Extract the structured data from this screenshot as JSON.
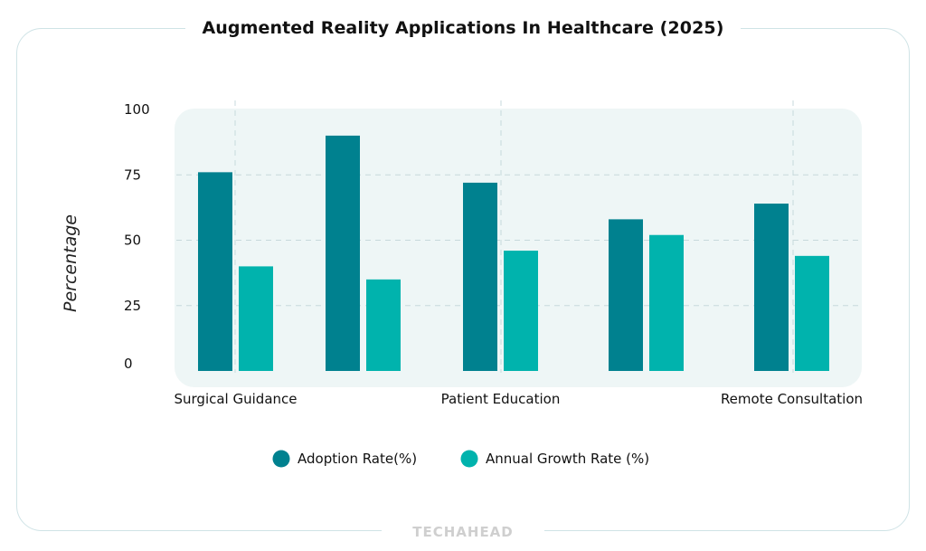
{
  "chart_data": {
    "type": "bar",
    "title": "Augmented Reality Applications In Healthcare (2025)",
    "ylabel": "Percentage",
    "xlabel": "",
    "ylim": [
      0,
      100
    ],
    "yticks": [
      0,
      25,
      50,
      75,
      100
    ],
    "categories": [
      "Surgical Guidance",
      "",
      "Patient Education",
      "",
      "Remote Consultation"
    ],
    "series": [
      {
        "name": "Adoption Rate(%)",
        "color": "#00818f",
        "values": [
          76,
          90,
          72,
          58,
          64
        ]
      },
      {
        "name": "Annual Growth Rate (%)",
        "color": "#00b3ad",
        "values": [
          40,
          35,
          46,
          52,
          44
        ]
      }
    ],
    "grid": true,
    "legend": "bottom-center"
  },
  "watermark": "TECHAHEAD"
}
